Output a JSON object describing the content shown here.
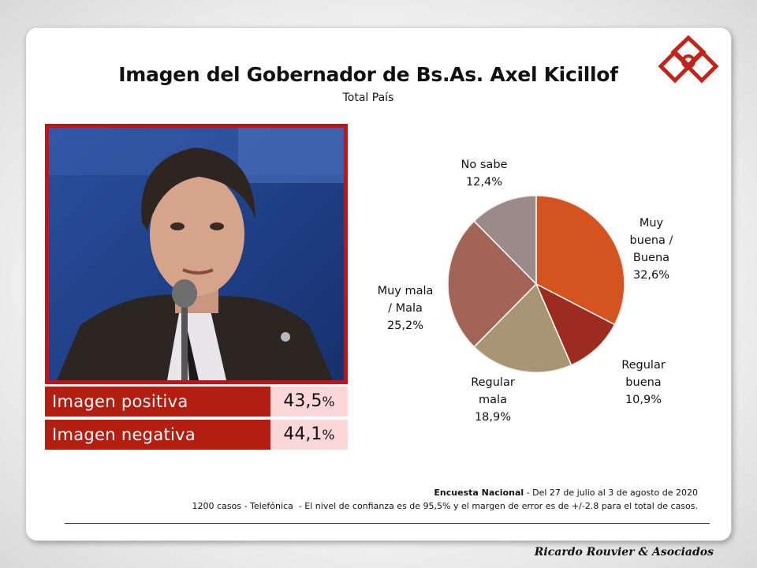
{
  "header": {
    "title": "Imagen del Gobernador de Bs.As. Axel Kicillof",
    "subtitle": "Total País"
  },
  "stats": [
    {
      "label": "Imagen positiva",
      "value": "43,5",
      "unit": "%"
    },
    {
      "label": "Imagen negativa",
      "value": "44,1",
      "unit": "%"
    }
  ],
  "chart_data": {
    "type": "pie",
    "slices": [
      {
        "label_lines": [
          "Muy",
          "buena /",
          "Buena"
        ],
        "value_text": "32,6%",
        "value": 32.6,
        "color": "#d4531e"
      },
      {
        "label_lines": [
          "Regular",
          "buena"
        ],
        "value_text": "10,9%",
        "value": 10.9,
        "color": "#9b2c1f"
      },
      {
        "label_lines": [
          "Regular",
          "mala"
        ],
        "value_text": "18,9%",
        "value": 18.9,
        "color": "#a99574"
      },
      {
        "label_lines": [
          "Muy mala",
          "/ Mala"
        ],
        "value_text": "25,2%",
        "value": 25.2,
        "color": "#a36456"
      },
      {
        "label_lines": [
          "No sabe"
        ],
        "value_text": "12,4%",
        "value": 12.4,
        "color": "#9a8b8a"
      }
    ]
  },
  "footer": {
    "survey_bold": "Encuesta Nacional",
    "survey_rest": " - Del 27 de julio al 3 de agosto de 2020",
    "method": "1200 casos - Telefónica  - El nivel de confianza es de 95,5% y el margen de error es de +/-2.8 para el total de casos.",
    "brand": "Ricardo Rouvier & Asociados"
  }
}
